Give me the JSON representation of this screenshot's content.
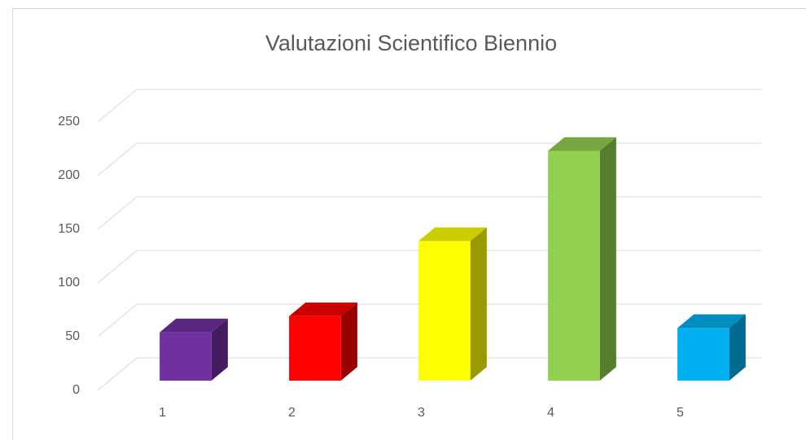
{
  "chart_data": {
    "type": "bar",
    "title": "Valutazioni Scientifico Biennio",
    "categories": [
      "1",
      "2",
      "3",
      "4",
      "5"
    ],
    "values": [
      45,
      60,
      130,
      214,
      49
    ],
    "colors": [
      "#7030a0",
      "#ff0000",
      "#ffff00",
      "#92d050",
      "#00b0f0"
    ],
    "ylim": [
      0,
      250
    ],
    "yticks": [
      0,
      50,
      100,
      150,
      200,
      250
    ],
    "grid": true
  }
}
